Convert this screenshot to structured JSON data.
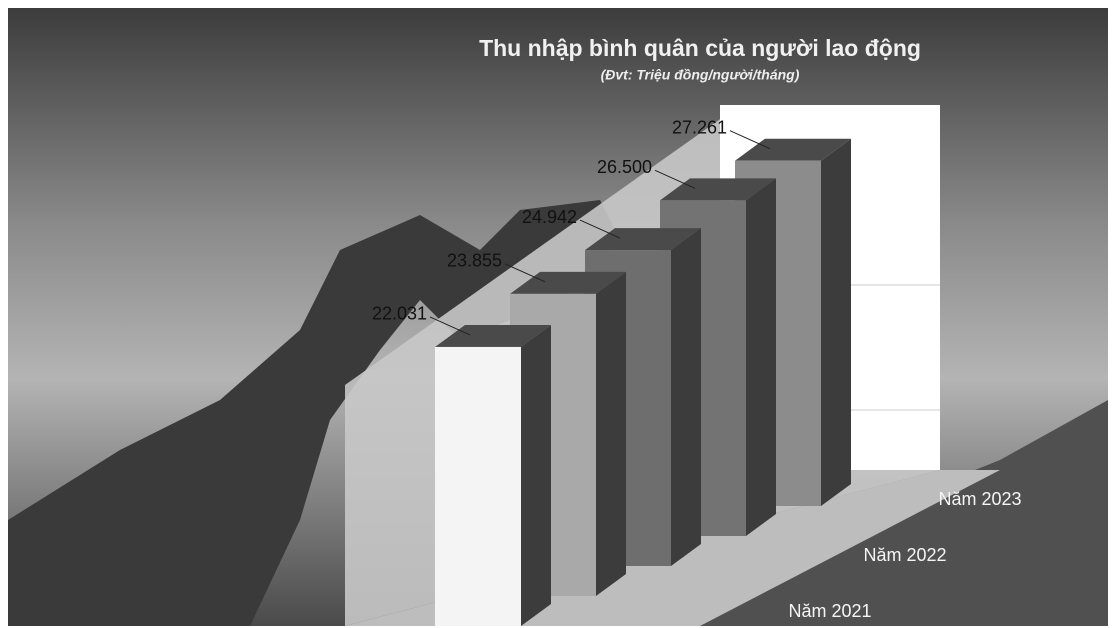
{
  "chart_data": {
    "type": "bar3d",
    "title": "Thu nhập bình quân của người lao động",
    "subtitle": "(Đvt: Triệu đồng/người/tháng)",
    "categories": [
      "Năm 2021",
      null,
      "Năm 2022",
      null,
      "Năm 2023"
    ],
    "values": [
      22.031,
      23.855,
      24.942,
      26.5,
      27.261
    ],
    "value_labels": [
      "22.031",
      "23.855",
      "24.942",
      "26.500",
      "27.261"
    ],
    "colors": [
      "#f4f4f4",
      "#a9a9a9",
      "#6e6e6e",
      "#737373",
      "#8c8c8c"
    ],
    "ylim": [
      0,
      30
    ]
  }
}
